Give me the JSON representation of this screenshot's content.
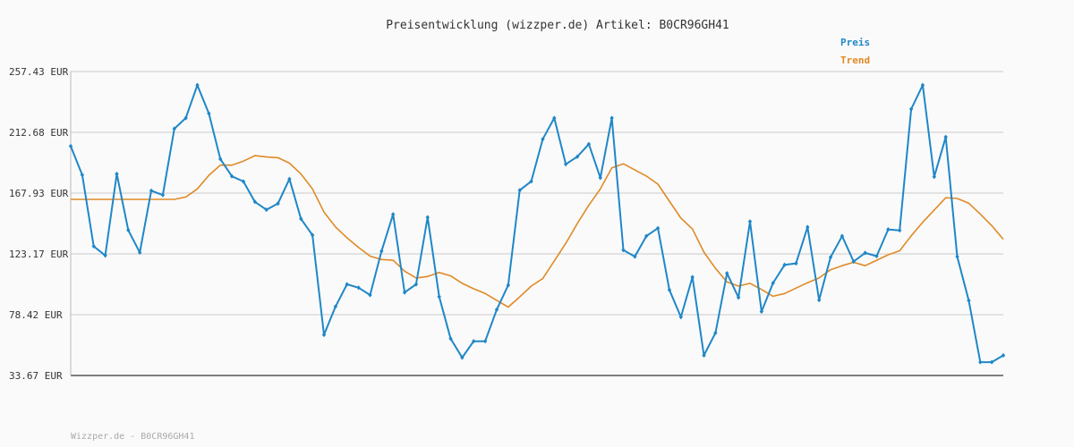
{
  "chart_data": {
    "type": "line",
    "title": "Preisentwicklung (wizzper.de) Artikel: B0CR96GH41",
    "footer": "Wizzper.de - B0CR96GH41",
    "xlabel": "",
    "ylabel": "",
    "ylim": [
      33.67,
      257.43
    ],
    "yticks": [
      "257.43 EUR",
      "212.68 EUR",
      "167.93 EUR",
      "123.17 EUR",
      "78.42 EUR",
      "33.67 EUR"
    ],
    "ytick_values": [
      257.43,
      212.68,
      167.93,
      123.17,
      78.42,
      33.67
    ],
    "grid": true,
    "legend_position": "top-right",
    "series": [
      {
        "name": "Preis",
        "color": "#1f87c8",
        "markers": true,
        "values": [
          202.5,
          181.3,
          128.8,
          122.0,
          182.1,
          140.7,
          124.2,
          169.7,
          166.5,
          215.3,
          223.2,
          247.4,
          226.5,
          193.0,
          180.3,
          176.5,
          161.5,
          155.7,
          160.3,
          178.3,
          149.0,
          137.0,
          63.6,
          84.4,
          100.8,
          98.3,
          92.9,
          125.2,
          152.3,
          94.8,
          100.8,
          150.1,
          91.7,
          60.8,
          46.8,
          58.9,
          58.9,
          82.1,
          100.1,
          170.0,
          176.6,
          207.6,
          223.2,
          189.2,
          194.7,
          204.0,
          179.2,
          223.2,
          126.0,
          121.2,
          136.3,
          142.1,
          96.7,
          76.7,
          106.1,
          48.5,
          65.0,
          108.9,
          91.1,
          147.0,
          80.7,
          101.7,
          115.1,
          116.2,
          142.9,
          89.2,
          120.7,
          136.3,
          117.6,
          123.9,
          121.5,
          141.2,
          140.5,
          229.8,
          247.4,
          179.9,
          209.2,
          121.2,
          88.9,
          43.5,
          43.5,
          48.5
        ]
      },
      {
        "name": "Trend",
        "color": "#e08a26",
        "markers": false,
        "values": [
          163.3,
          163.3,
          163.3,
          163.3,
          163.3,
          163.3,
          163.3,
          163.3,
          163.3,
          163.3,
          165.0,
          171.0,
          181.0,
          188.5,
          188.5,
          191.5,
          195.5,
          194.5,
          194.0,
          190.0,
          182.0,
          171.0,
          154.0,
          143.0,
          135.0,
          128.0,
          121.5,
          119.0,
          118.5,
          110.5,
          105.5,
          106.5,
          109.5,
          107.0,
          101.5,
          97.5,
          94.0,
          89.0,
          84.0,
          91.5,
          99.5,
          105.0,
          118.0,
          131.0,
          145.5,
          159.0,
          171.0,
          186.5,
          189.5,
          185.0,
          180.5,
          174.5,
          162.0,
          149.5,
          141.5,
          124.5,
          112.5,
          102.5,
          99.5,
          101.5,
          97.0,
          92.0,
          94.0,
          98.0,
          102.0,
          105.5,
          111.5,
          114.5,
          117.0,
          114.5,
          118.5,
          122.5,
          125.5,
          136.5,
          146.5,
          155.5,
          164.5,
          164.0,
          160.5,
          152.5,
          144.0,
          134.0
        ]
      }
    ]
  }
}
